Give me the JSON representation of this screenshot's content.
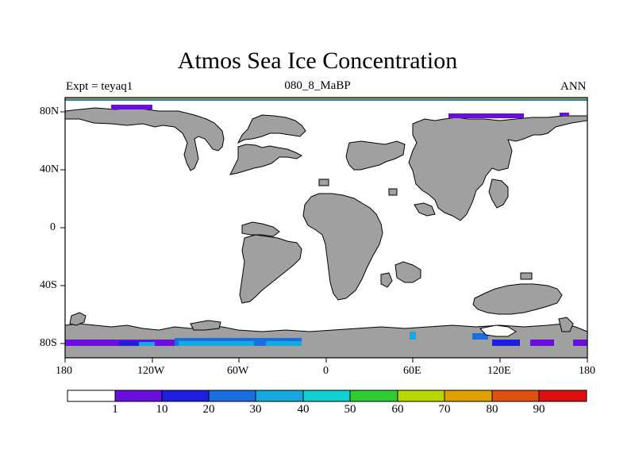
{
  "title": "Atmos Sea Ice Concentration",
  "subtitle_left": "Expt = teyaq1",
  "subtitle_center": "080_8_MaBP",
  "subtitle_right": "ANN",
  "map": {
    "projection": "cylindrical equidistant",
    "lon_range": [
      -180,
      180
    ],
    "lat_range": [
      -90,
      90
    ],
    "x_ticks": [
      "180",
      "120W",
      "60W",
      "0",
      "60E",
      "120E",
      "180"
    ],
    "y_ticks": [
      "80N",
      "40N",
      "0",
      "40S",
      "80S"
    ],
    "land_color": "#a0a0a0",
    "ocean_color": "#ffffff"
  },
  "colorbar": {
    "colors": [
      "#ffffff",
      "#6a0ee0",
      "#1e1ee0",
      "#1a6ee0",
      "#18a8e0",
      "#10d0d0",
      "#30cc30",
      "#b8d800",
      "#e0a000",
      "#e05010",
      "#e01010"
    ],
    "labels": [
      "1",
      "10",
      "20",
      "30",
      "40",
      "50",
      "60",
      "70",
      "80",
      "90"
    ]
  }
}
